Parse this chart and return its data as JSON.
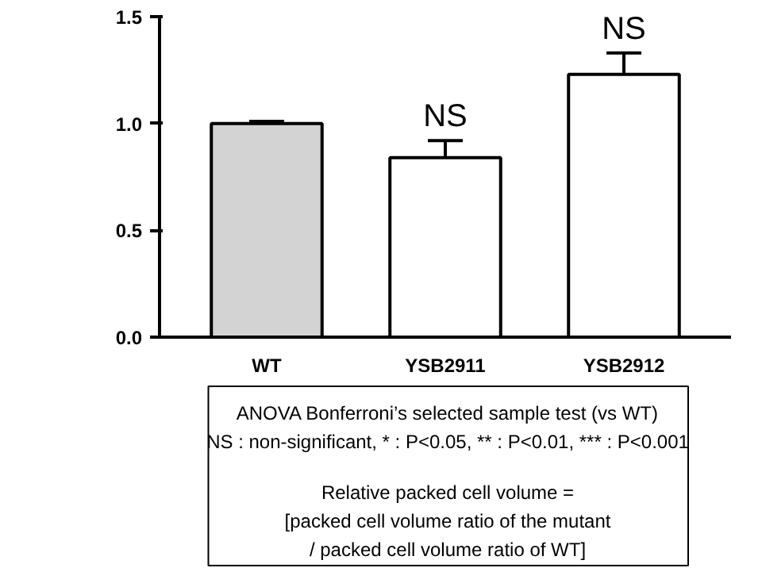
{
  "chart_data": {
    "type": "bar",
    "categories": [
      "WT",
      "YSB2911",
      "YSB2912"
    ],
    "values": [
      1.0,
      0.84,
      1.23
    ],
    "errors": [
      0.01,
      0.08,
      0.1
    ],
    "colors": [
      "#d3d3d3",
      "#ffffff",
      "#ffffff"
    ],
    "ylim": [
      0,
      1.5
    ],
    "yticks": [
      {
        "value": 0,
        "label": "0.0"
      },
      {
        "value": 0.5,
        "label": "0.5"
      },
      {
        "value": 1.0,
        "label": "1.0"
      },
      {
        "value": 1.5,
        "label": "1.5"
      }
    ],
    "grid": false,
    "annotations": [
      {
        "text": "NS",
        "x": "YSB2911",
        "y": 0.92
      },
      {
        "text": "NS",
        "x": "YSB2912",
        "y": 1.33
      },
      "ANOVA Bonferroni’s selected sample test (vs WT)",
      "NS : non-significant, * : P<0.05, ** : P<0.01, *** : P<0.001",
      "Relative packed cell volume =",
      "[packed cell volume ratio of the mutant",
      "/ packed cell volume ratio of WT]"
    ]
  }
}
